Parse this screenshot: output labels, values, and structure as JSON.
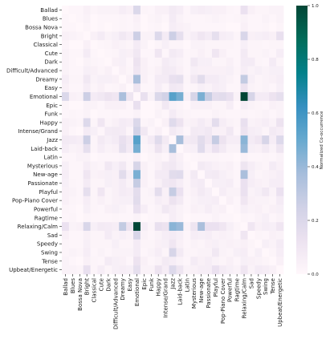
{
  "chart_data": {
    "type": "heatmap",
    "labels": [
      "Ballad",
      "Blues",
      "Bossa Nova",
      "Bright",
      "Classical",
      "Cute",
      "Dark",
      "Difficult/Advanced",
      "Dreamy",
      "Easy",
      "Emotional",
      "Epic",
      "Funk",
      "Happy",
      "Intense/Grand",
      "Jazz",
      "Laid-back",
      "Latin",
      "Mysterious",
      "New-age",
      "Passionate",
      "Playful",
      "Pop-Piano Cover",
      "Powerful",
      "Ragtime",
      "Relaxing/Calm",
      "Sad",
      "Speedy",
      "Swing",
      "Tense",
      "Upbeat/Energetic"
    ],
    "values": [
      [
        0.0,
        0.01,
        0.01,
        0.04,
        0.02,
        0.03,
        0.03,
        0.03,
        0.06,
        0.04,
        0.2,
        0.02,
        0.01,
        0.04,
        0.04,
        0.08,
        0.06,
        0.01,
        0.05,
        0.06,
        0.05,
        0.04,
        0.04,
        0.02,
        0.01,
        0.13,
        0.04,
        0.02,
        0.02,
        0.03,
        0.03
      ],
      [
        0.01,
        0.0,
        0.01,
        0.03,
        0.0,
        0.01,
        0.01,
        0.01,
        0.02,
        0.01,
        0.04,
        0.0,
        0.02,
        0.03,
        0.01,
        0.07,
        0.03,
        0.01,
        0.01,
        0.01,
        0.02,
        0.03,
        0.02,
        0.01,
        0.02,
        0.03,
        0.01,
        0.01,
        0.03,
        0.01,
        0.03
      ],
      [
        0.01,
        0.01,
        0.0,
        0.02,
        0.0,
        0.01,
        0.0,
        0.01,
        0.02,
        0.01,
        0.03,
        0.0,
        0.01,
        0.02,
        0.0,
        0.06,
        0.04,
        0.03,
        0.01,
        0.01,
        0.01,
        0.01,
        0.01,
        0.0,
        0.0,
        0.04,
        0.01,
        0.01,
        0.02,
        0.0,
        0.02
      ],
      [
        0.04,
        0.03,
        0.02,
        0.0,
        0.04,
        0.07,
        0.03,
        0.05,
        0.09,
        0.06,
        0.26,
        0.03,
        0.03,
        0.19,
        0.07,
        0.26,
        0.15,
        0.03,
        0.06,
        0.1,
        0.07,
        0.15,
        0.06,
        0.05,
        0.02,
        0.21,
        0.04,
        0.05,
        0.06,
        0.04,
        0.14
      ],
      [
        0.02,
        0.0,
        0.0,
        0.04,
        0.0,
        0.01,
        0.02,
        0.04,
        0.03,
        0.02,
        0.07,
        0.03,
        0.0,
        0.02,
        0.05,
        0.02,
        0.02,
        0.0,
        0.03,
        0.03,
        0.02,
        0.02,
        0.02,
        0.02,
        0.01,
        0.05,
        0.02,
        0.02,
        0.01,
        0.02,
        0.02
      ],
      [
        0.03,
        0.01,
        0.01,
        0.07,
        0.01,
        0.0,
        0.01,
        0.02,
        0.05,
        0.04,
        0.09,
        0.01,
        0.01,
        0.1,
        0.01,
        0.08,
        0.06,
        0.01,
        0.02,
        0.04,
        0.02,
        0.1,
        0.04,
        0.01,
        0.01,
        0.08,
        0.02,
        0.02,
        0.03,
        0.01,
        0.06
      ],
      [
        0.03,
        0.01,
        0.0,
        0.03,
        0.02,
        0.01,
        0.0,
        0.04,
        0.05,
        0.01,
        0.12,
        0.04,
        0.01,
        0.02,
        0.07,
        0.05,
        0.03,
        0.01,
        0.09,
        0.05,
        0.05,
        0.02,
        0.02,
        0.04,
        0.01,
        0.07,
        0.07,
        0.02,
        0.01,
        0.07,
        0.02
      ],
      [
        0.03,
        0.01,
        0.01,
        0.05,
        0.04,
        0.02,
        0.04,
        0.0,
        0.04,
        0.02,
        0.1,
        0.04,
        0.02,
        0.04,
        0.08,
        0.07,
        0.04,
        0.01,
        0.05,
        0.04,
        0.04,
        0.04,
        0.04,
        0.05,
        0.02,
        0.06,
        0.03,
        0.05,
        0.03,
        0.05,
        0.05
      ],
      [
        0.06,
        0.02,
        0.02,
        0.09,
        0.03,
        0.05,
        0.05,
        0.04,
        0.0,
        0.04,
        0.36,
        0.04,
        0.01,
        0.07,
        0.07,
        0.14,
        0.15,
        0.02,
        0.09,
        0.17,
        0.07,
        0.07,
        0.05,
        0.03,
        0.01,
        0.29,
        0.05,
        0.02,
        0.03,
        0.04,
        0.06
      ],
      [
        0.04,
        0.01,
        0.01,
        0.06,
        0.02,
        0.04,
        0.01,
        0.02,
        0.04,
        0.0,
        0.11,
        0.01,
        0.01,
        0.06,
        0.02,
        0.09,
        0.08,
        0.01,
        0.02,
        0.05,
        0.03,
        0.06,
        0.05,
        0.01,
        0.01,
        0.12,
        0.03,
        0.02,
        0.03,
        0.01,
        0.05
      ],
      [
        0.2,
        0.04,
        0.03,
        0.26,
        0.07,
        0.09,
        0.12,
        0.1,
        0.36,
        0.11,
        0.0,
        0.14,
        0.03,
        0.2,
        0.24,
        0.54,
        0.47,
        0.04,
        0.22,
        0.46,
        0.28,
        0.16,
        0.17,
        0.14,
        0.03,
        1.0,
        0.22,
        0.07,
        0.07,
        0.12,
        0.15
      ],
      [
        0.02,
        0.0,
        0.0,
        0.03,
        0.03,
        0.01,
        0.04,
        0.04,
        0.04,
        0.01,
        0.14,
        0.0,
        0.0,
        0.02,
        0.09,
        0.03,
        0.02,
        0.0,
        0.04,
        0.04,
        0.04,
        0.02,
        0.02,
        0.06,
        0.0,
        0.06,
        0.03,
        0.02,
        0.01,
        0.04,
        0.03
      ],
      [
        0.01,
        0.02,
        0.01,
        0.03,
        0.0,
        0.01,
        0.01,
        0.02,
        0.01,
        0.01,
        0.03,
        0.0,
        0.0,
        0.03,
        0.01,
        0.07,
        0.03,
        0.02,
        0.01,
        0.01,
        0.01,
        0.03,
        0.02,
        0.01,
        0.01,
        0.02,
        0.01,
        0.02,
        0.03,
        0.01,
        0.03
      ],
      [
        0.04,
        0.03,
        0.02,
        0.19,
        0.02,
        0.1,
        0.02,
        0.04,
        0.07,
        0.06,
        0.2,
        0.02,
        0.03,
        0.0,
        0.04,
        0.18,
        0.12,
        0.03,
        0.04,
        0.07,
        0.04,
        0.16,
        0.06,
        0.03,
        0.02,
        0.14,
        0.03,
        0.04,
        0.06,
        0.03,
        0.12
      ],
      [
        0.04,
        0.01,
        0.0,
        0.07,
        0.05,
        0.01,
        0.07,
        0.08,
        0.07,
        0.02,
        0.24,
        0.09,
        0.01,
        0.04,
        0.0,
        0.08,
        0.05,
        0.01,
        0.08,
        0.07,
        0.09,
        0.04,
        0.04,
        0.09,
        0.01,
        0.12,
        0.06,
        0.05,
        0.02,
        0.08,
        0.06
      ],
      [
        0.08,
        0.07,
        0.06,
        0.26,
        0.02,
        0.08,
        0.05,
        0.07,
        0.14,
        0.09,
        0.54,
        0.03,
        0.07,
        0.18,
        0.08,
        0.0,
        0.37,
        0.08,
        0.09,
        0.17,
        0.1,
        0.28,
        0.12,
        0.06,
        0.06,
        0.43,
        0.07,
        0.1,
        0.22,
        0.06,
        0.19
      ],
      [
        0.06,
        0.03,
        0.04,
        0.15,
        0.02,
        0.06,
        0.03,
        0.04,
        0.15,
        0.08,
        0.47,
        0.02,
        0.03,
        0.12,
        0.05,
        0.37,
        0.0,
        0.04,
        0.05,
        0.18,
        0.06,
        0.13,
        0.08,
        0.03,
        0.03,
        0.4,
        0.05,
        0.04,
        0.08,
        0.03,
        0.11
      ],
      [
        0.01,
        0.01,
        0.03,
        0.03,
        0.0,
        0.01,
        0.01,
        0.01,
        0.02,
        0.01,
        0.04,
        0.0,
        0.02,
        0.03,
        0.01,
        0.08,
        0.04,
        0.0,
        0.01,
        0.02,
        0.02,
        0.02,
        0.01,
        0.01,
        0.0,
        0.03,
        0.01,
        0.01,
        0.02,
        0.01,
        0.03
      ],
      [
        0.05,
        0.01,
        0.01,
        0.06,
        0.03,
        0.02,
        0.09,
        0.05,
        0.09,
        0.02,
        0.22,
        0.04,
        0.01,
        0.04,
        0.08,
        0.09,
        0.05,
        0.01,
        0.0,
        0.08,
        0.06,
        0.04,
        0.03,
        0.04,
        0.01,
        0.11,
        0.06,
        0.03,
        0.02,
        0.07,
        0.04
      ],
      [
        0.06,
        0.01,
        0.01,
        0.1,
        0.03,
        0.04,
        0.05,
        0.04,
        0.17,
        0.05,
        0.46,
        0.04,
        0.01,
        0.07,
        0.07,
        0.17,
        0.18,
        0.02,
        0.08,
        0.0,
        0.07,
        0.08,
        0.05,
        0.03,
        0.01,
        0.36,
        0.05,
        0.02,
        0.03,
        0.04,
        0.06
      ],
      [
        0.05,
        0.02,
        0.01,
        0.07,
        0.02,
        0.02,
        0.05,
        0.04,
        0.07,
        0.03,
        0.28,
        0.04,
        0.01,
        0.04,
        0.09,
        0.1,
        0.06,
        0.02,
        0.06,
        0.07,
        0.0,
        0.05,
        0.05,
        0.06,
        0.01,
        0.13,
        0.06,
        0.04,
        0.03,
        0.06,
        0.06
      ],
      [
        0.04,
        0.03,
        0.01,
        0.15,
        0.02,
        0.1,
        0.02,
        0.04,
        0.07,
        0.06,
        0.16,
        0.02,
        0.03,
        0.16,
        0.04,
        0.28,
        0.13,
        0.02,
        0.04,
        0.08,
        0.05,
        0.0,
        0.06,
        0.03,
        0.03,
        0.13,
        0.03,
        0.05,
        0.09,
        0.03,
        0.13
      ],
      [
        0.04,
        0.02,
        0.01,
        0.06,
        0.02,
        0.04,
        0.02,
        0.04,
        0.05,
        0.05,
        0.17,
        0.02,
        0.02,
        0.06,
        0.04,
        0.12,
        0.08,
        0.01,
        0.03,
        0.05,
        0.05,
        0.06,
        0.0,
        0.04,
        0.01,
        0.1,
        0.04,
        0.03,
        0.03,
        0.02,
        0.07
      ],
      [
        0.02,
        0.01,
        0.0,
        0.05,
        0.02,
        0.01,
        0.04,
        0.05,
        0.03,
        0.01,
        0.14,
        0.06,
        0.01,
        0.03,
        0.09,
        0.06,
        0.03,
        0.01,
        0.04,
        0.03,
        0.06,
        0.03,
        0.04,
        0.0,
        0.01,
        0.05,
        0.03,
        0.04,
        0.02,
        0.04,
        0.05
      ],
      [
        0.01,
        0.02,
        0.0,
        0.02,
        0.01,
        0.01,
        0.01,
        0.02,
        0.01,
        0.01,
        0.03,
        0.0,
        0.01,
        0.02,
        0.01,
        0.06,
        0.03,
        0.0,
        0.01,
        0.01,
        0.01,
        0.03,
        0.01,
        0.01,
        0.0,
        0.02,
        0.01,
        0.03,
        0.05,
        0.01,
        0.03
      ],
      [
        0.13,
        0.03,
        0.04,
        0.21,
        0.05,
        0.08,
        0.07,
        0.06,
        0.29,
        0.12,
        1.0,
        0.06,
        0.02,
        0.14,
        0.12,
        0.43,
        0.4,
        0.03,
        0.11,
        0.36,
        0.13,
        0.13,
        0.1,
        0.05,
        0.02,
        0.0,
        0.1,
        0.04,
        0.06,
        0.05,
        0.1
      ],
      [
        0.04,
        0.01,
        0.01,
        0.04,
        0.02,
        0.02,
        0.07,
        0.03,
        0.05,
        0.03,
        0.22,
        0.03,
        0.01,
        0.03,
        0.06,
        0.07,
        0.05,
        0.01,
        0.06,
        0.05,
        0.06,
        0.03,
        0.04,
        0.03,
        0.01,
        0.1,
        0.0,
        0.02,
        0.01,
        0.04,
        0.03
      ],
      [
        0.02,
        0.01,
        0.01,
        0.05,
        0.02,
        0.02,
        0.02,
        0.05,
        0.02,
        0.02,
        0.07,
        0.02,
        0.02,
        0.04,
        0.05,
        0.1,
        0.04,
        0.01,
        0.03,
        0.02,
        0.04,
        0.05,
        0.03,
        0.04,
        0.03,
        0.04,
        0.02,
        0.0,
        0.05,
        0.03,
        0.07
      ],
      [
        0.02,
        0.03,
        0.02,
        0.06,
        0.01,
        0.03,
        0.01,
        0.03,
        0.03,
        0.03,
        0.07,
        0.01,
        0.03,
        0.06,
        0.02,
        0.22,
        0.08,
        0.02,
        0.02,
        0.03,
        0.03,
        0.09,
        0.03,
        0.02,
        0.05,
        0.06,
        0.01,
        0.05,
        0.0,
        0.02,
        0.06
      ],
      [
        0.03,
        0.01,
        0.0,
        0.04,
        0.02,
        0.01,
        0.07,
        0.05,
        0.04,
        0.01,
        0.12,
        0.04,
        0.01,
        0.03,
        0.08,
        0.06,
        0.03,
        0.01,
        0.07,
        0.04,
        0.06,
        0.03,
        0.02,
        0.04,
        0.01,
        0.05,
        0.04,
        0.03,
        0.02,
        0.0,
        0.04
      ],
      [
        0.03,
        0.03,
        0.02,
        0.14,
        0.02,
        0.06,
        0.02,
        0.05,
        0.06,
        0.05,
        0.15,
        0.03,
        0.03,
        0.12,
        0.06,
        0.19,
        0.11,
        0.03,
        0.04,
        0.06,
        0.06,
        0.13,
        0.07,
        0.05,
        0.03,
        0.1,
        0.03,
        0.07,
        0.06,
        0.04,
        0.0
      ]
    ],
    "colorbar": {
      "label": "Normalized Co-occurrence",
      "range": [
        0,
        1
      ],
      "ticks": [
        "0.0",
        "0.2",
        "0.4",
        "0.6",
        "0.8",
        "1.0"
      ],
      "colormap": "PuBuGn",
      "colors": [
        "#fff7fb",
        "#ece2f0",
        "#d0d1e6",
        "#a6bddb",
        "#67a9cf",
        "#3690c0",
        "#02818a",
        "#016c59",
        "#014636"
      ]
    },
    "xlabel": "",
    "ylabel": "",
    "title": ""
  }
}
